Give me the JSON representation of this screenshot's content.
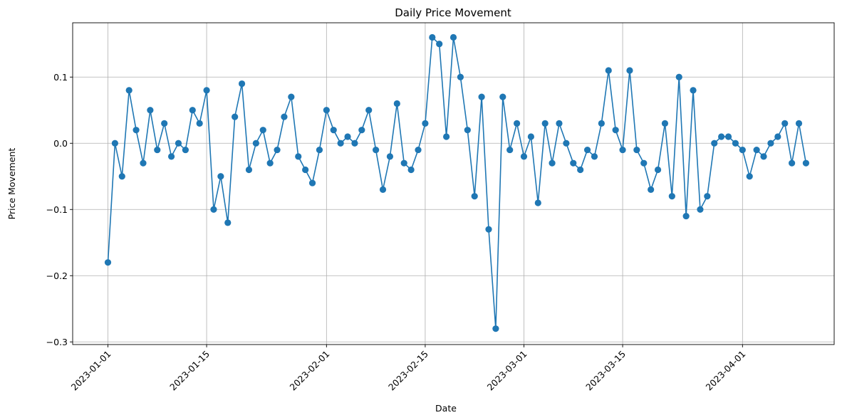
{
  "chart_data": {
    "type": "line",
    "title": "Daily Price Movement",
    "xlabel": "Date",
    "ylabel": "Price Movement",
    "grid": true,
    "color": "#1f77b4",
    "marker": "circle",
    "x_start": "2023-01-01",
    "x_end": "2023-04-09",
    "xlim": [
      "2022-12-27",
      "2023-04-14"
    ],
    "ylim": [
      -0.304,
      0.182
    ],
    "x_ticks": [
      "2023-01-01",
      "2023-01-15",
      "2023-02-01",
      "2023-02-15",
      "2023-03-01",
      "2023-03-15",
      "2023-04-01"
    ],
    "y_ticks": [
      -0.3,
      -0.2,
      -0.1,
      0.0,
      0.1
    ],
    "y_tick_labels": [
      "−0.3",
      "−0.2",
      "−0.1",
      "0.0",
      "0.1"
    ],
    "series": [
      {
        "values": [
          -0.18,
          0.0,
          -0.05,
          0.08,
          0.02,
          -0.03,
          0.05,
          -0.01,
          0.03,
          -0.02,
          0.0,
          -0.01,
          0.05,
          0.03,
          0.08,
          -0.1,
          -0.05,
          -0.12,
          0.04,
          0.09,
          -0.04,
          0.0,
          0.02,
          -0.03,
          -0.01,
          0.04,
          0.07,
          -0.02,
          -0.04,
          -0.06,
          -0.01,
          0.05,
          0.02,
          0.0,
          0.01,
          0.0,
          0.02,
          0.05,
          -0.01,
          -0.07,
          -0.02,
          0.06,
          -0.03,
          -0.04,
          -0.01,
          0.03,
          0.16,
          0.15,
          0.01,
          0.16,
          0.1,
          0.02,
          -0.08,
          0.07,
          -0.13,
          -0.28,
          0.07,
          -0.01,
          0.03,
          -0.02,
          0.01,
          -0.09,
          0.03,
          -0.03,
          0.03,
          0.0,
          -0.03,
          -0.04,
          -0.01,
          -0.02,
          0.03,
          0.11,
          0.02,
          -0.01,
          0.11,
          -0.01,
          -0.03,
          -0.07,
          -0.04,
          0.03,
          -0.08,
          0.1,
          -0.11,
          0.08,
          -0.1,
          -0.08,
          0.0,
          0.01,
          0.01,
          0.0,
          -0.01,
          -0.05,
          -0.01,
          -0.02,
          0.0,
          0.01,
          0.03,
          -0.03,
          0.03,
          -0.03
        ]
      }
    ]
  }
}
